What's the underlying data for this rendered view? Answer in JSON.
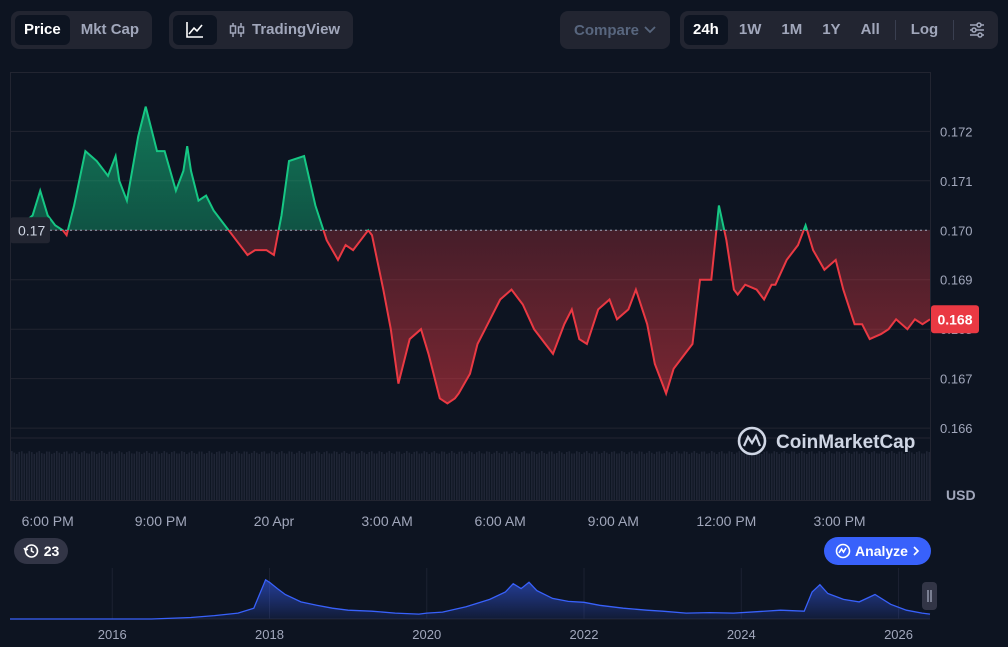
{
  "toolbar": {
    "metric_tabs": [
      "Price",
      "Mkt Cap"
    ],
    "tradingview_label": "TradingView",
    "compare_label": "Compare",
    "ranges": [
      "24h",
      "1W",
      "1M",
      "1Y",
      "All"
    ],
    "log_label": "Log"
  },
  "watermark": "CoinMarketCap",
  "analyze_label": "Analyze",
  "history_badge": "23",
  "colors": {
    "up": "#16c784",
    "down": "#ea3943",
    "accent": "#3861fb",
    "bg": "#0d1421"
  },
  "chart_data": [
    {
      "type": "area",
      "reference_value": 0.17,
      "reference_label": "0.17",
      "current_price_label": "0.168",
      "currency_label": "USD",
      "ylim": [
        0.1658,
        0.1732
      ],
      "y_ticks": [
        0.172,
        0.171,
        0.17,
        0.169,
        0.168,
        0.167,
        0.166
      ],
      "y_tick_labels": [
        "0.172",
        "0.171",
        "0.170",
        "0.169",
        "0.168",
        "0.167",
        "0.166"
      ],
      "x_tick_labels": [
        "6:00 PM",
        "9:00 PM",
        "20 Apr",
        "3:00 AM",
        "6:00 AM",
        "9:00 AM",
        "12:00 PM",
        "3:00 PM"
      ],
      "x_hours": [
        18,
        21,
        24,
        27,
        30,
        33,
        36,
        39
      ],
      "xlim": [
        17.0,
        41.4
      ],
      "x": [
        17.0,
        17.3,
        17.6,
        17.8,
        18.0,
        18.2,
        18.4,
        18.5,
        18.7,
        19.0,
        19.3,
        19.6,
        19.8,
        19.9,
        20.1,
        20.4,
        20.6,
        20.9,
        21.1,
        21.4,
        21.6,
        21.7,
        21.8,
        22.0,
        22.2,
        22.4,
        22.6,
        22.8,
        23.0,
        23.3,
        23.5,
        23.8,
        24.0,
        24.2,
        24.4,
        24.8,
        25.1,
        25.4,
        25.7,
        25.9,
        26.1,
        26.3,
        26.5,
        26.6,
        26.9,
        27.1,
        27.3,
        27.6,
        27.9,
        28.1,
        28.4,
        28.6,
        28.8,
        28.9,
        29.2,
        29.4,
        29.6,
        29.8,
        30.0,
        30.3,
        30.6,
        30.9,
        31.2,
        31.4,
        31.7,
        31.9,
        32.1,
        32.3,
        32.6,
        32.9,
        33.1,
        33.4,
        33.6,
        33.9,
        34.1,
        34.4,
        34.6,
        34.9,
        35.1,
        35.3,
        35.6,
        35.8,
        36.0,
        36.2,
        36.3,
        36.5,
        36.8,
        37.0,
        37.2,
        37.3,
        37.6,
        37.9,
        38.1,
        38.3,
        38.6,
        38.9,
        39.1,
        39.4,
        39.6,
        39.8,
        40.1,
        40.3,
        40.5,
        40.8,
        41.0,
        41.2,
        41.4
      ],
      "y": [
        0.1699,
        0.1701,
        0.1703,
        0.1708,
        0.1703,
        0.1701,
        0.17,
        0.1699,
        0.1705,
        0.1716,
        0.1714,
        0.1711,
        0.1715,
        0.171,
        0.1706,
        0.1719,
        0.1725,
        0.1716,
        0.1716,
        0.1708,
        0.1712,
        0.1717,
        0.1712,
        0.1706,
        0.1707,
        0.1704,
        0.1702,
        0.17,
        0.1698,
        0.1695,
        0.1696,
        0.1696,
        0.1695,
        0.1703,
        0.1714,
        0.1715,
        0.1705,
        0.1698,
        0.1694,
        0.1697,
        0.1696,
        0.1698,
        0.17,
        0.1699,
        0.1688,
        0.168,
        0.1669,
        0.1678,
        0.168,
        0.1675,
        0.1666,
        0.1665,
        0.1666,
        0.1667,
        0.1671,
        0.1677,
        0.168,
        0.1683,
        0.1686,
        0.1688,
        0.1685,
        0.168,
        0.1677,
        0.1675,
        0.1681,
        0.1684,
        0.1678,
        0.1677,
        0.1684,
        0.1686,
        0.1682,
        0.1684,
        0.1688,
        0.1681,
        0.1673,
        0.1667,
        0.1672,
        0.1675,
        0.1677,
        0.169,
        0.169,
        0.1705,
        0.1698,
        0.1688,
        0.1687,
        0.1689,
        0.1688,
        0.1686,
        0.1689,
        0.1689,
        0.1694,
        0.1697,
        0.1701,
        0.1696,
        0.1692,
        0.1694,
        0.1688,
        0.1681,
        0.1681,
        0.1678,
        0.1679,
        0.168,
        0.1682,
        0.168,
        0.1682,
        0.1681,
        0.1682
      ],
      "volume": "uniform"
    },
    {
      "type": "line",
      "x_tick_labels": [
        "2016",
        "2018",
        "2020",
        "2022",
        "2024",
        "2026"
      ],
      "x_years": [
        2016,
        2018,
        2020,
        2022,
        2024,
        2026
      ],
      "xlim": [
        2014.7,
        2026.4
      ],
      "ylim": [
        0,
        1
      ],
      "x": [
        2014.7,
        2015.5,
        2016.5,
        2017.0,
        2017.3,
        2017.6,
        2017.8,
        2017.95,
        2018.0,
        2018.1,
        2018.2,
        2018.4,
        2018.6,
        2018.8,
        2019.0,
        2019.3,
        2019.6,
        2019.9,
        2020.0,
        2020.2,
        2020.5,
        2020.8,
        2021.0,
        2021.1,
        2021.2,
        2021.3,
        2021.4,
        2021.6,
        2021.8,
        2022.0,
        2022.2,
        2022.5,
        2022.8,
        2023.0,
        2023.3,
        2023.6,
        2023.9,
        2024.2,
        2024.5,
        2024.8,
        2024.9,
        2025.0,
        2025.1,
        2025.3,
        2025.5,
        2025.7,
        2025.9,
        2026.1,
        2026.3,
        2026.4
      ],
      "y": [
        0.0,
        0.0,
        0.0,
        0.03,
        0.07,
        0.12,
        0.22,
        0.8,
        0.75,
        0.62,
        0.5,
        0.35,
        0.28,
        0.22,
        0.18,
        0.16,
        0.12,
        0.1,
        0.12,
        0.14,
        0.25,
        0.4,
        0.55,
        0.72,
        0.62,
        0.75,
        0.58,
        0.42,
        0.36,
        0.34,
        0.28,
        0.22,
        0.18,
        0.16,
        0.12,
        0.13,
        0.12,
        0.15,
        0.18,
        0.16,
        0.55,
        0.7,
        0.52,
        0.4,
        0.35,
        0.5,
        0.3,
        0.18,
        0.12,
        0.1
      ]
    }
  ]
}
